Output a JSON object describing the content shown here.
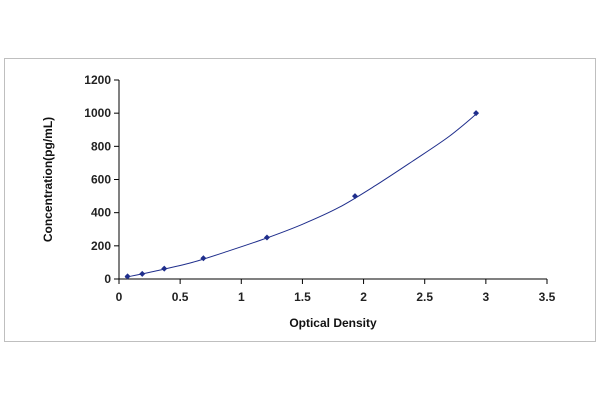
{
  "chart_data": {
    "type": "scatter",
    "title": "",
    "xlabel": "Optical Density",
    "ylabel": "Concentration(pg/mL)",
    "xlim": [
      0,
      3.5
    ],
    "ylim": [
      0,
      1200
    ],
    "xticks": [
      0,
      0.5,
      1,
      1.5,
      2,
      2.5,
      3,
      3.5
    ],
    "xtick_labels": [
      "0",
      "0.5",
      "1",
      "1.5",
      "2",
      "2.5",
      "3",
      "3.5"
    ],
    "yticks": [
      0,
      200,
      400,
      600,
      800,
      1000,
      1200
    ],
    "ytick_labels": [
      "0",
      "200",
      "400",
      "600",
      "800",
      "1000",
      "1200"
    ],
    "grid": false,
    "series": [
      {
        "type": "scatter",
        "x": [
          0.07,
          0.19,
          0.37,
          0.69,
          1.21,
          1.93,
          2.92
        ],
        "y": [
          15.6,
          31.2,
          62.5,
          125,
          250,
          500,
          1000
        ],
        "color": "#1f2e8c"
      },
      {
        "type": "fit-line",
        "x": [
          0.05,
          0.3,
          0.6,
          0.9,
          1.2,
          1.5,
          1.8,
          2.1,
          2.4,
          2.7,
          2.93
        ],
        "y": [
          10,
          48,
          100,
          170,
          245,
          330,
          432,
          565,
          710,
          860,
          1000
        ],
        "color": "#1f2e8c"
      }
    ]
  }
}
